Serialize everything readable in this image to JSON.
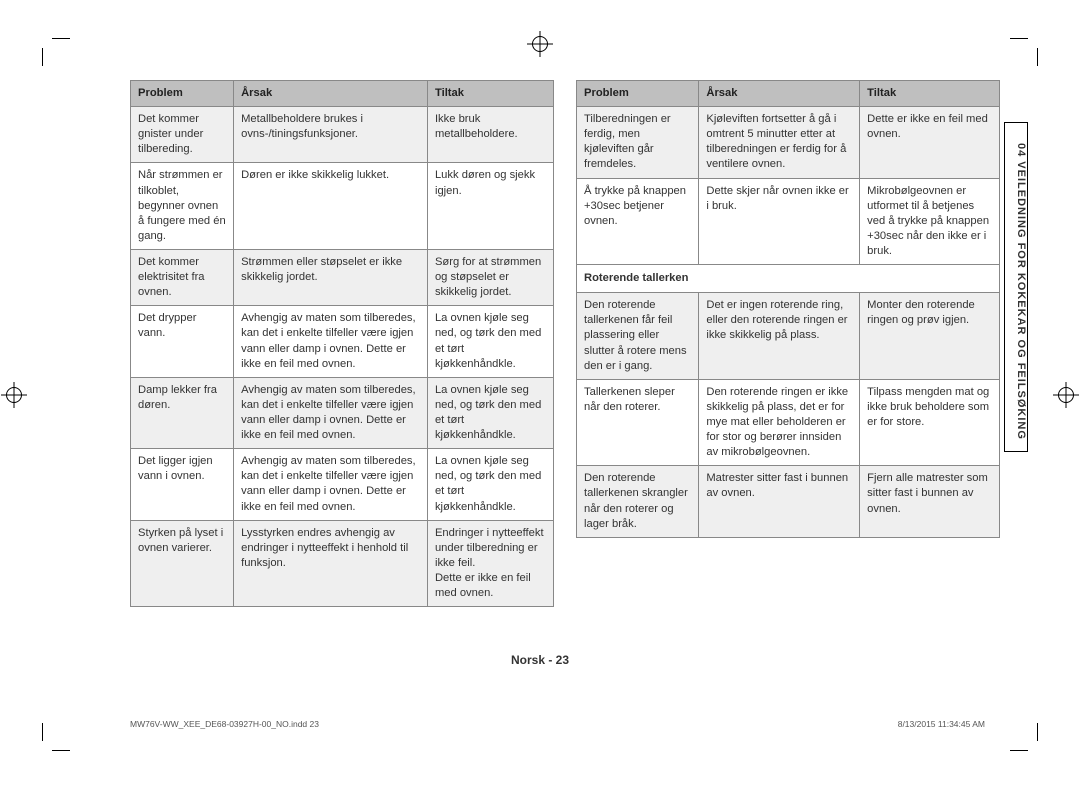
{
  "headers": {
    "c1": "Problem",
    "c2": "Årsak",
    "c3": "Tiltak"
  },
  "left": [
    {
      "p": "Det kommer gnister under tilbereding.",
      "a": "Metallbeholdere brukes i ovns-/tiningsfunksjoner.",
      "t": "Ikke bruk metallbeholdere."
    },
    {
      "p": "Når strømmen er tilkoblet, begynner ovnen å fungere med én gang.",
      "a": "Døren er ikke skikkelig lukket.",
      "t": "Lukk døren og sjekk igjen."
    },
    {
      "p": "Det kommer elektrisitet fra ovnen.",
      "a": "Strømmen eller støpselet er ikke skikkelig jordet.",
      "t": "Sørg for at strømmen og støpselet er skikkelig jordet."
    },
    {
      "p": "Det drypper vann.",
      "a": "Avhengig av maten som tilberedes, kan det i enkelte tilfeller være igjen vann eller damp i ovnen. Dette er ikke en feil med ovnen.",
      "t": "La ovnen kjøle seg ned, og tørk den med et tørt kjøkkenhåndkle."
    },
    {
      "p": "Damp lekker fra døren.",
      "a": "Avhengig av maten som tilberedes, kan det i enkelte tilfeller være igjen vann eller damp i ovnen. Dette er ikke en feil med ovnen.",
      "t": "La ovnen kjøle seg ned, og tørk den med et tørt kjøkkenhåndkle."
    },
    {
      "p": "Det ligger igjen vann i ovnen.",
      "a": "Avhengig av maten som tilberedes, kan det i enkelte tilfeller være igjen vann eller damp i ovnen. Dette er ikke en feil med ovnen.",
      "t": "La ovnen kjøle seg ned, og tørk den med et tørt kjøkkenhåndkle."
    },
    {
      "p": "Styrken på lyset i ovnen varierer.",
      "a": "Lysstyrken endres avhengig av endringer i nytteeffekt i henhold til funksjon.",
      "t": "Endringer i nytteeffekt under tilberedning er ikke feil.\nDette er ikke en feil med ovnen."
    }
  ],
  "right": [
    {
      "p": "Tilberedningen er ferdig, men kjøleviften går fremdeles.",
      "a": "Kjøleviften fortsetter å gå i omtrent 5 minutter etter at tilberedningen er ferdig for å ventilere ovnen.",
      "t": "Dette er ikke en feil med ovnen."
    },
    {
      "p": "Å trykke på knappen +30sec betjener ovnen.",
      "a": "Dette skjer når ovnen ikke er i bruk.",
      "t": "Mikrobølgeovnen er utformet til å betjenes ved å trykke på knappen +30sec når den ikke er i bruk."
    }
  ],
  "right_section": "Roterende tallerken",
  "right2": [
    {
      "p": "Den roterende tallerkenen får feil plassering eller slutter å rotere mens den er i gang.",
      "a": "Det er ingen roterende ring, eller den roterende ringen er ikke skikkelig på plass.",
      "t": "Monter den roterende ringen og prøv igjen."
    },
    {
      "p": "Tallerkenen sleper når den roterer.",
      "a": "Den roterende ringen er ikke skikkelig på plass, det er for mye mat eller beholderen er for stor og berører innsiden av mikrobølgeovnen.",
      "t": "Tilpass mengden mat og ikke bruk beholdere som er for store."
    },
    {
      "p": "Den roterende tallerkenen skrangler når den roterer og lager bråk.",
      "a": "Matrester sitter fast i bunnen av ovnen.",
      "t": "Fjern alle matrester som sitter fast i bunnen av ovnen."
    }
  ],
  "sidetab": "04   VEILEDNING FOR KOKEKAR OG FEILSØKING",
  "footer_center": "Norsk - 23",
  "footer_left": "MW76V-WW_XEE_DE68-03927H-00_NO.indd   23",
  "footer_right": "8/13/2015   11:34:45 AM",
  "colors": {
    "header_bg": "#bfbfbf",
    "alt_bg": "#efefef",
    "border": "#888888",
    "text": "#333333"
  }
}
